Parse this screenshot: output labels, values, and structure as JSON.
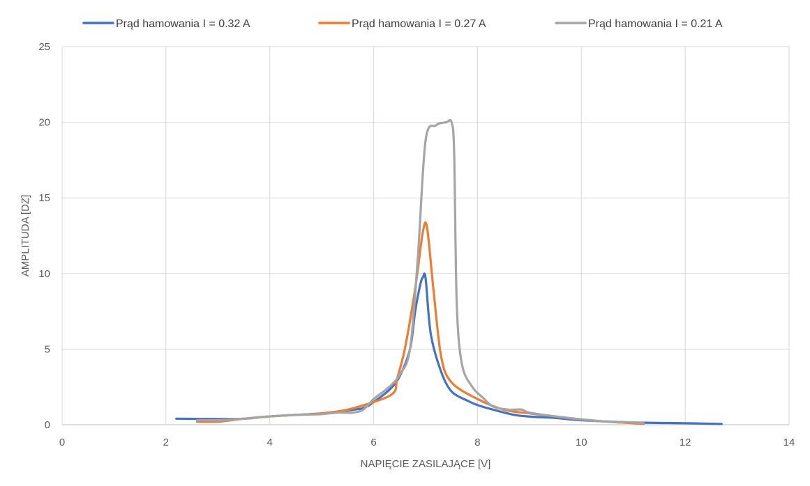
{
  "chart_data": {
    "type": "line",
    "title": "",
    "xlabel": "NAPIĘCIE ZASILAJĄCE [V]",
    "ylabel": "AMPLITUDA [DZ]",
    "xlim": [
      0,
      14
    ],
    "ylim": [
      0,
      25
    ],
    "xticks": [
      "0",
      "2",
      "4",
      "6",
      "8",
      "10",
      "12",
      "14"
    ],
    "yticks": [
      "0",
      "5",
      "10",
      "15",
      "20",
      "25"
    ],
    "grid": true,
    "legend_position": "top",
    "series": [
      {
        "name": "Prąd hamowania I = 0.32 A",
        "color": "#4472c4",
        "points": [
          [
            2.2,
            0.4
          ],
          [
            3.0,
            0.38
          ],
          [
            3.5,
            0.4
          ],
          [
            4.0,
            0.55
          ],
          [
            4.5,
            0.65
          ],
          [
            5.0,
            0.75
          ],
          [
            5.5,
            0.95
          ],
          [
            5.8,
            1.1
          ],
          [
            6.0,
            1.5
          ],
          [
            6.3,
            2.3
          ],
          [
            6.5,
            3.2
          ],
          [
            6.7,
            5.0
          ],
          [
            6.8,
            7.5
          ],
          [
            6.9,
            9.3
          ],
          [
            6.95,
            9.75
          ],
          [
            7.0,
            9.7
          ],
          [
            7.1,
            6.0
          ],
          [
            7.3,
            3.5
          ],
          [
            7.5,
            2.2
          ],
          [
            7.8,
            1.6
          ],
          [
            8.0,
            1.3
          ],
          [
            8.3,
            1.0
          ],
          [
            8.8,
            0.6
          ],
          [
            9.5,
            0.45
          ],
          [
            10.0,
            0.3
          ],
          [
            11.0,
            0.15
          ],
          [
            12.0,
            0.1
          ],
          [
            12.7,
            0.05
          ]
        ]
      },
      {
        "name": "Prąd hamowania I = 0.27 A",
        "color": "#ed7d31",
        "points": [
          [
            2.6,
            0.2
          ],
          [
            3.0,
            0.2
          ],
          [
            3.5,
            0.4
          ],
          [
            4.0,
            0.55
          ],
          [
            4.5,
            0.65
          ],
          [
            5.0,
            0.75
          ],
          [
            5.5,
            1.0
          ],
          [
            6.0,
            1.5
          ],
          [
            6.3,
            1.9
          ],
          [
            6.42,
            2.3
          ],
          [
            6.45,
            3.0
          ],
          [
            6.6,
            5.0
          ],
          [
            6.8,
            9.0
          ],
          [
            6.95,
            12.8
          ],
          [
            7.03,
            13.0
          ],
          [
            7.15,
            9.0
          ],
          [
            7.3,
            4.5
          ],
          [
            7.5,
            2.8
          ],
          [
            8.0,
            1.7
          ],
          [
            8.5,
            1.0
          ],
          [
            9.0,
            0.75
          ],
          [
            9.5,
            0.55
          ],
          [
            10.0,
            0.35
          ],
          [
            10.5,
            0.2
          ],
          [
            11.0,
            0.1
          ],
          [
            11.2,
            0.05
          ]
        ]
      },
      {
        "name": "Prąd hamowania I = 0.21 A",
        "color": "#a5a5a5",
        "points": [
          [
            2.6,
            0.3
          ],
          [
            3.0,
            0.3
          ],
          [
            3.5,
            0.4
          ],
          [
            4.0,
            0.55
          ],
          [
            4.5,
            0.65
          ],
          [
            5.0,
            0.7
          ],
          [
            5.3,
            0.8
          ],
          [
            5.6,
            0.8
          ],
          [
            5.8,
            1.0
          ],
          [
            6.0,
            1.7
          ],
          [
            6.3,
            2.5
          ],
          [
            6.5,
            3.3
          ],
          [
            6.7,
            5.0
          ],
          [
            6.85,
            11.0
          ],
          [
            7.0,
            18.8
          ],
          [
            7.2,
            19.8
          ],
          [
            7.4,
            20.0
          ],
          [
            7.5,
            20.0
          ],
          [
            7.55,
            18.0
          ],
          [
            7.6,
            8.0
          ],
          [
            7.7,
            4.0
          ],
          [
            7.9,
            2.5
          ],
          [
            8.1,
            1.8
          ],
          [
            8.3,
            1.2
          ],
          [
            8.6,
            1.0
          ],
          [
            8.85,
            1.0
          ],
          [
            9.0,
            0.8
          ],
          [
            9.5,
            0.55
          ],
          [
            10.0,
            0.35
          ],
          [
            10.5,
            0.2
          ],
          [
            11.0,
            0.15
          ],
          [
            11.2,
            0.1
          ]
        ]
      }
    ]
  }
}
